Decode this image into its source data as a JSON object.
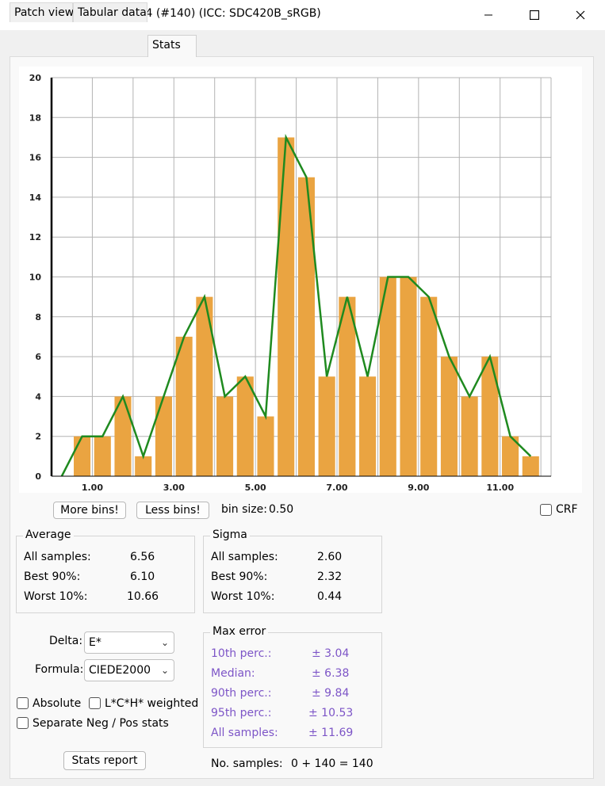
{
  "window": {
    "title": "PatchTool Compare-14 (#140) (ICC: SDC420B_sRGB)"
  },
  "tabs": [
    {
      "label": "Patch view"
    },
    {
      "label": "Tabular data"
    },
    {
      "label": "Stats"
    }
  ],
  "chart_data": {
    "type": "bar",
    "x_ticks": [
      "1.00",
      "3.00",
      "5.00",
      "7.00",
      "9.00",
      "11.00"
    ],
    "x_tick_values": [
      1,
      3,
      5,
      7,
      9,
      11
    ],
    "y_ticks": [
      "0",
      "2",
      "4",
      "6",
      "8",
      "10",
      "12",
      "14",
      "16",
      "18",
      "20"
    ],
    "xlim": [
      0,
      12.25
    ],
    "ylim": [
      0,
      20
    ],
    "bin_centers": [
      0.75,
      1.25,
      1.75,
      2.25,
      2.75,
      3.25,
      3.75,
      4.25,
      4.75,
      5.25,
      5.75,
      6.25,
      6.75,
      7.25,
      7.75,
      8.25,
      8.75,
      9.25,
      9.75,
      10.25,
      10.75,
      11.25,
      11.75
    ],
    "bar_values": [
      2,
      2,
      4,
      1,
      4,
      7,
      9,
      4,
      5,
      3,
      17,
      15,
      5,
      9,
      5,
      10,
      10,
      9,
      6,
      4,
      6,
      2,
      1
    ],
    "line_x": [
      0.25,
      0.75,
      1.25,
      1.75,
      2.25,
      2.75,
      3.25,
      3.75,
      4.25,
      4.75,
      5.25,
      5.75,
      6.25,
      6.75,
      7.25,
      7.75,
      8.25,
      8.75,
      9.25,
      9.75,
      10.25,
      10.75,
      11.25,
      11.75
    ],
    "line_values": [
      0,
      2,
      2,
      4,
      1,
      4,
      7,
      9,
      4,
      5,
      3,
      17,
      15,
      5,
      9,
      5,
      10,
      10,
      9,
      6,
      4,
      6,
      2,
      1
    ],
    "grid": true,
    "colors": {
      "bar": "#eaa441",
      "line": "#1f8a1f",
      "grid": "#b4b4b4"
    }
  },
  "controls": {
    "more_bins": "More bins!",
    "less_bins": "Less bins!",
    "bin_size_label": "bin size:",
    "bin_size_value": "0.50",
    "crf_label": "CRF"
  },
  "average": {
    "title": "Average",
    "rows": [
      {
        "label": "All samples:",
        "value": "6.56"
      },
      {
        "label": "Best 90%:",
        "value": "6.10"
      },
      {
        "label": "Worst 10%:",
        "value": "10.66"
      }
    ]
  },
  "sigma": {
    "title": "Sigma",
    "rows": [
      {
        "label": "All samples:",
        "value": "2.60"
      },
      {
        "label": "Best 90%:",
        "value": "2.32"
      },
      {
        "label": "Worst 10%:",
        "value": "0.44"
      }
    ]
  },
  "delta": {
    "label": "Delta:",
    "value": "E*"
  },
  "formula": {
    "label": "Formula:",
    "value": "CIEDE2000"
  },
  "options": {
    "absolute": "Absolute",
    "lch_weighted": "L*C*H* weighted",
    "separate": "Separate Neg / Pos stats"
  },
  "max_error": {
    "title": "Max error",
    "rows": [
      {
        "label": "10th perc.:",
        "value": "± 3.04"
      },
      {
        "label": "Median:",
        "value": "± 6.38"
      },
      {
        "label": "90th perc.:",
        "value": "± 9.84"
      },
      {
        "label": "95th perc.:",
        "value": "± 10.53"
      },
      {
        "label": "All samples:",
        "value": "± 11.69"
      }
    ]
  },
  "stats_report": "Stats report",
  "samples": {
    "label": "No. samples:",
    "value": "0 + 140 = 140"
  },
  "colors": {
    "accent_purple": "#7d55c7"
  }
}
